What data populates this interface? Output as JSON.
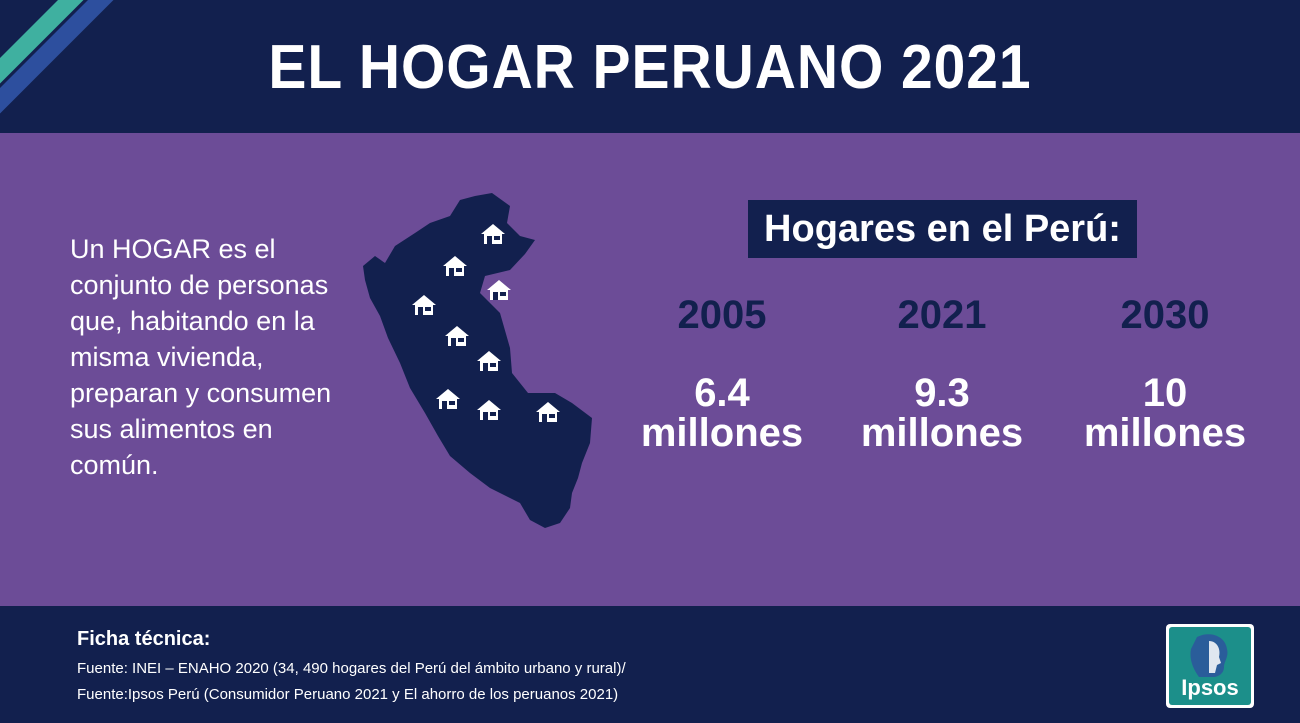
{
  "header": {
    "title": "EL HOGAR PERUANO 2021"
  },
  "definition": {
    "lines": [
      "Un HOGAR es el",
      "conjunto de personas",
      "que, habitando en la",
      "misma vivienda,",
      "preparan y consumen",
      "sus alimentos en",
      "común."
    ]
  },
  "stats": {
    "label": "Hogares en el Perú:",
    "items": [
      {
        "year": "2005",
        "value": "6.4",
        "unit": "millones"
      },
      {
        "year": "2021",
        "value": "9.3",
        "unit": "millones"
      },
      {
        "year": "2030",
        "value": "10",
        "unit": "millones"
      }
    ]
  },
  "footer": {
    "ficha_title": "Ficha técnica:",
    "source_1": "Fuente: INEI – ENAHO 2020 (34, 490 hogares del Perú del ámbito urbano y rural)/",
    "source_2": "Fuente:Ipsos Perú (Consumidor Peruano 2021 y El ahorro de los peruanos 2021)"
  },
  "logo": {
    "text": "Ipsos"
  },
  "colors": {
    "navy": "#12204e",
    "purple": "#6c4c97",
    "teal": "#3fb0a0",
    "blue_stripe": "#2d4f9e",
    "logo_teal": "#1c8f8a"
  },
  "icons": [
    "peru-map-icon",
    "house-icon"
  ]
}
